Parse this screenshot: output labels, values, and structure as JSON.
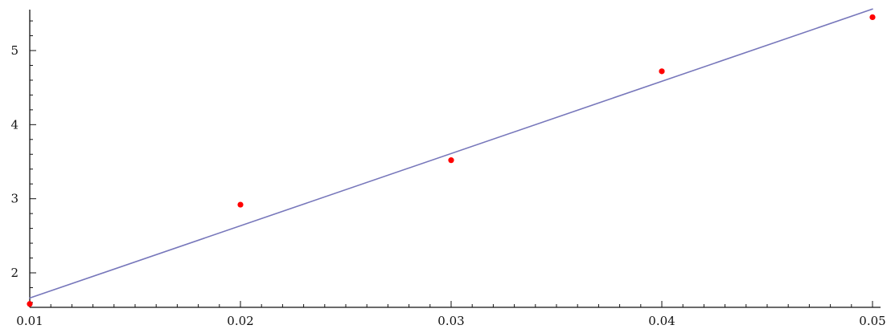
{
  "chart_data": {
    "type": "scatter",
    "title": "",
    "xlabel": "",
    "ylabel": "",
    "xlim": [
      0.01,
      0.05
    ],
    "ylim": [
      1.55,
      5.55
    ],
    "x_ticks": [
      {
        "value": 0.01,
        "label": "0.01"
      },
      {
        "value": 0.02,
        "label": "0.02"
      },
      {
        "value": 0.03,
        "label": "0.03"
      },
      {
        "value": 0.04,
        "label": "0.04"
      },
      {
        "value": 0.05,
        "label": "0.05"
      }
    ],
    "y_ticks": [
      {
        "value": 2,
        "label": "2"
      },
      {
        "value": 3,
        "label": "3"
      },
      {
        "value": 4,
        "label": "4"
      },
      {
        "value": 5,
        "label": "5"
      }
    ],
    "grid": false,
    "legend": "none",
    "series": [
      {
        "type": "scatter",
        "color": "#ff0000",
        "points": [
          {
            "x": 0.01,
            "y": 1.58
          },
          {
            "x": 0.02,
            "y": 2.92
          },
          {
            "x": 0.03,
            "y": 3.52
          },
          {
            "x": 0.04,
            "y": 4.72
          },
          {
            "x": 0.05,
            "y": 5.45
          }
        ]
      },
      {
        "type": "line",
        "color": "#7777bb",
        "points": [
          {
            "x": 0.01,
            "y": 1.66
          },
          {
            "x": 0.05,
            "y": 5.56
          }
        ]
      }
    ]
  }
}
